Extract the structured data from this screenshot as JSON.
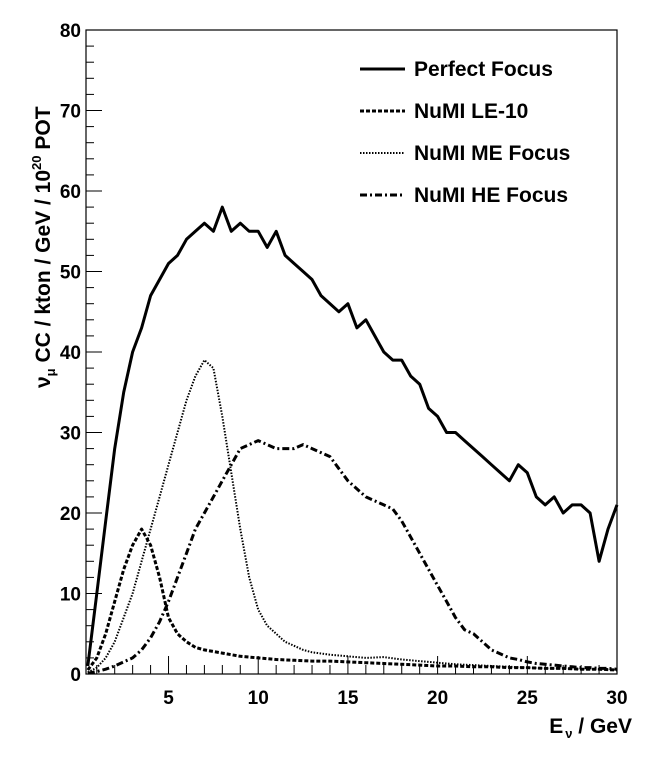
{
  "chart_data": {
    "type": "line",
    "title": "",
    "xlabel": "E ν / GeV",
    "xlabel_parts": {
      "main": "E",
      "sub": "ν",
      "rest": " / GeV"
    },
    "ylabel": "νμ CC / kton / GeV / 10^20 POT",
    "ylabel_parts": {
      "nu": "ν",
      "mu": "μ",
      "mid": " CC / kton / GeV / 10",
      "exp": "20",
      "end": " POT"
    },
    "xlim": [
      0.4,
      30
    ],
    "ylim": [
      0,
      80
    ],
    "xticks": [
      5,
      10,
      15,
      20,
      25,
      30
    ],
    "yticks": [
      0,
      10,
      20,
      30,
      40,
      50,
      60,
      70,
      80
    ],
    "grid": false,
    "legend_position": "top-right",
    "series": [
      {
        "name": "Perfect Focus",
        "style": "solid",
        "x": [
          0.5,
          1,
          1.5,
          2,
          2.5,
          3,
          3.5,
          4,
          4.5,
          5,
          5.5,
          6,
          6.5,
          7,
          7.5,
          8,
          8.5,
          9,
          9.5,
          10,
          10.5,
          11,
          11.5,
          12,
          12.5,
          13,
          13.5,
          14,
          14.5,
          15,
          15.5,
          16,
          16.5,
          17,
          17.5,
          18,
          18.5,
          19,
          19.5,
          20,
          20.5,
          21,
          21.5,
          22,
          22.5,
          23,
          23.5,
          24,
          24.5,
          25,
          25.5,
          26,
          26.5,
          27,
          27.5,
          28,
          28.5,
          29,
          29.5,
          30
        ],
        "values": [
          1,
          10,
          19,
          28,
          35,
          40,
          43,
          47,
          49,
          51,
          52,
          54,
          55,
          56,
          55,
          58,
          55,
          56,
          55,
          55,
          53,
          55,
          52,
          51,
          50,
          49,
          47,
          46,
          45,
          46,
          43,
          44,
          42,
          40,
          39,
          39,
          37,
          36,
          33,
          32,
          30,
          30,
          29,
          28,
          27,
          26,
          25,
          24,
          26,
          25,
          22,
          21,
          22,
          20,
          21,
          21,
          20,
          14,
          18,
          21
        ]
      },
      {
        "name": "NuMI LE-10",
        "style": "dashed",
        "x": [
          0.5,
          1,
          1.5,
          2,
          2.5,
          3,
          3.5,
          4,
          4.5,
          5,
          5.5,
          6,
          6.5,
          7,
          7.5,
          8,
          9,
          10,
          11,
          12,
          13,
          14,
          15,
          16,
          17,
          18,
          19,
          20,
          21,
          22,
          23,
          24,
          25,
          26,
          27,
          28,
          29,
          30
        ],
        "values": [
          0.5,
          2,
          5,
          9,
          13,
          16,
          18,
          16,
          12,
          7,
          5,
          4,
          3.3,
          3,
          2.8,
          2.6,
          2.2,
          2,
          1.8,
          1.7,
          1.6,
          1.6,
          1.5,
          1.4,
          1.3,
          1.2,
          1.1,
          1.0,
          1.0,
          0.9,
          0.9,
          0.8,
          0.8,
          0.7,
          0.7,
          0.6,
          0.6,
          0.5
        ]
      },
      {
        "name": "NuMI ME Focus",
        "style": "dotted",
        "x": [
          0.5,
          1,
          1.5,
          2,
          2.5,
          3,
          3.5,
          4,
          4.5,
          5,
          5.5,
          6,
          6.5,
          7,
          7.5,
          8,
          8.5,
          9,
          9.5,
          10,
          10.5,
          11,
          11.5,
          12,
          12.5,
          13,
          14,
          15,
          16,
          17,
          18,
          19,
          20,
          21,
          22,
          23,
          24,
          25,
          26,
          27,
          28,
          29,
          30
        ],
        "values": [
          0.2,
          0.8,
          2,
          4,
          7,
          10,
          14,
          18,
          22,
          26,
          30,
          34,
          37,
          39,
          38,
          32,
          25,
          18,
          12,
          8,
          6,
          5,
          4,
          3.5,
          3,
          2.7,
          2.4,
          2.2,
          2.0,
          2.1,
          1.8,
          1.6,
          1.4,
          1.2,
          1.1,
          1.0,
          0.9,
          0.8,
          0.7,
          0.7,
          0.6,
          0.6,
          0.5
        ]
      },
      {
        "name": "NuMI HE Focus",
        "style": "dashdot",
        "x": [
          0.5,
          1,
          1.5,
          2,
          2.5,
          3,
          3.5,
          4,
          4.5,
          5,
          5.5,
          6,
          6.5,
          7,
          7.5,
          8,
          8.5,
          9,
          9.5,
          10,
          10.5,
          11,
          11.5,
          12,
          12.5,
          13,
          13.5,
          14,
          14.5,
          15,
          15.5,
          16,
          16.5,
          17,
          17.5,
          18,
          18.5,
          19,
          19.5,
          20,
          20.5,
          21,
          21.5,
          22,
          22.5,
          23,
          23.5,
          24,
          24.5,
          25,
          25.5,
          26,
          26.5,
          27,
          27.5,
          28,
          28.5,
          29,
          29.5,
          30
        ],
        "values": [
          0.1,
          0.3,
          0.6,
          1,
          1.5,
          2,
          3,
          4.5,
          6.5,
          9,
          12,
          15,
          18,
          20,
          22,
          24,
          26,
          28,
          28.5,
          29,
          28.5,
          28,
          28,
          28,
          28.5,
          28,
          27.5,
          27,
          25.5,
          24,
          23,
          22,
          21.5,
          21,
          20.5,
          19,
          17,
          15,
          13,
          11,
          9,
          7,
          5.5,
          5,
          4,
          3,
          2.5,
          2,
          1.8,
          1.5,
          1.3,
          1.2,
          1.1,
          1.0,
          0.9,
          0.8,
          0.8,
          0.7,
          0.7,
          0.6
        ]
      }
    ]
  }
}
